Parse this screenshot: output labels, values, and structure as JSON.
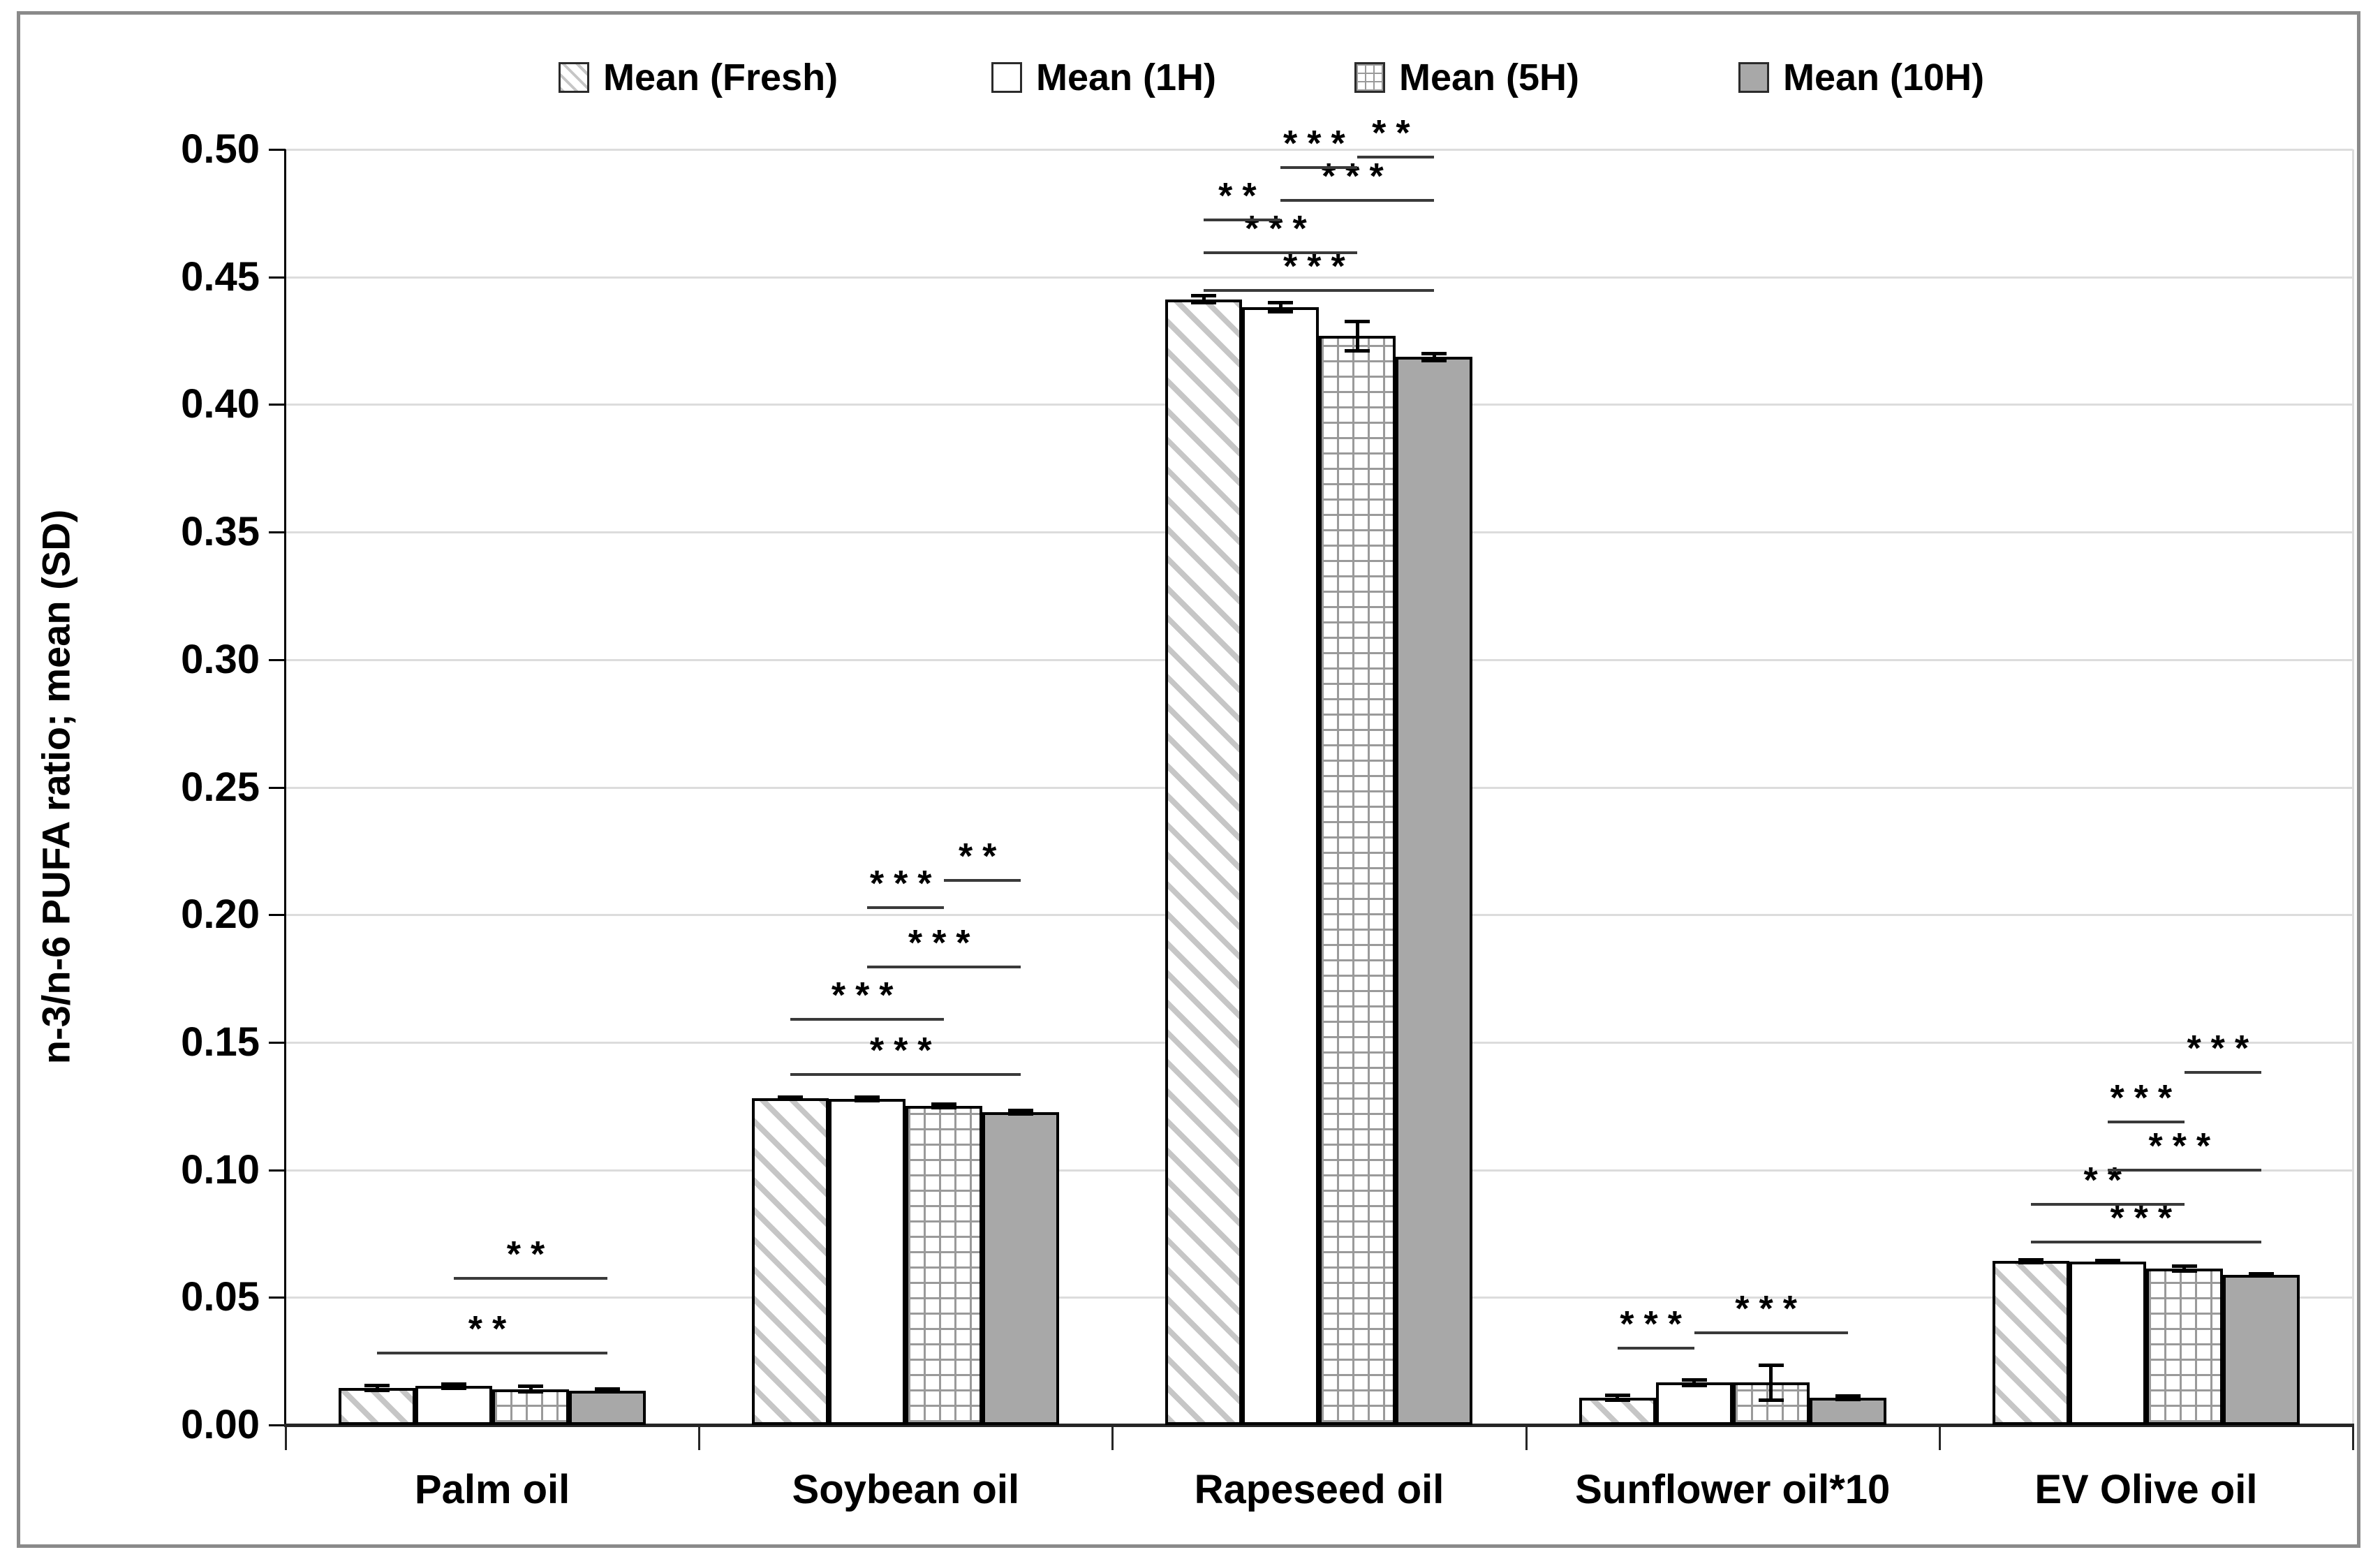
{
  "chart_data": {
    "type": "bar",
    "title": "",
    "xlabel": "",
    "ylabel": "n-3/n-6 PUFA ratio; mean (SD)",
    "ylim": [
      0,
      0.5
    ],
    "ytick_step": 0.05,
    "ytick_labels": [
      "0.00",
      "0.05",
      "0.10",
      "0.15",
      "0.20",
      "0.25",
      "0.30",
      "0.35",
      "0.40",
      "0.45",
      "0.50"
    ],
    "grid": true,
    "legend_position": "top-center",
    "categories": [
      "Palm oil",
      "Soybean oil",
      "Rapeseed oil",
      "Sunflower oil*10",
      "EV Olive oil"
    ],
    "series": [
      {
        "name": "Mean (Fresh)",
        "key": "fresh",
        "pattern": "diagonal-hatch",
        "values": [
          0.0145,
          0.128,
          0.4412,
          0.0107,
          0.0642
        ],
        "sd": [
          0.0012,
          0.0005,
          0.0015,
          0.001,
          0.0006
        ]
      },
      {
        "name": "Mean (1H)",
        "key": "h1",
        "pattern": "plain-white",
        "values": [
          0.0152,
          0.1278,
          0.4382,
          0.0166,
          0.064
        ],
        "sd": [
          0.001,
          0.0008,
          0.002,
          0.0012,
          0.0006
        ]
      },
      {
        "name": "Mean (5H)",
        "key": "h5",
        "pattern": "grid",
        "values": [
          0.014,
          0.125,
          0.4268,
          0.0166,
          0.0613
        ],
        "sd": [
          0.0012,
          0.0008,
          0.006,
          0.007,
          0.0012
        ]
      },
      {
        "name": "Mean (10H)",
        "key": "h10",
        "pattern": "solid-gray",
        "values": [
          0.0135,
          0.1226,
          0.4186,
          0.0107,
          0.0588
        ],
        "sd": [
          0.0006,
          0.0008,
          0.0015,
          0.0008,
          0.0005
        ]
      }
    ],
    "significance": [
      {
        "category": "Palm oil",
        "comparisons": [
          {
            "between": [
              0,
              3
            ],
            "label": "**",
            "level": 0.0283
          },
          {
            "between": [
              1,
              3
            ],
            "label": "**",
            "level": 0.0575
          }
        ]
      },
      {
        "category": "Soybean oil",
        "comparisons": [
          {
            "between": [
              0,
              3
            ],
            "label": "***",
            "level": 0.1374
          },
          {
            "between": [
              0,
              2
            ],
            "label": "***",
            "level": 0.159
          },
          {
            "between": [
              1,
              3
            ],
            "label": "***",
            "level": 0.1794
          },
          {
            "between": [
              1,
              2
            ],
            "label": "***",
            "level": 0.2027
          },
          {
            "between": [
              2,
              3
            ],
            "label": "**",
            "level": 0.2134
          }
        ]
      },
      {
        "category": "Rapeseed oil",
        "comparisons": [
          {
            "between": [
              0,
              3
            ],
            "label": "***",
            "level": 0.4447
          },
          {
            "between": [
              0,
              2
            ],
            "label": "***",
            "level": 0.4596
          },
          {
            "between": [
              0,
              1
            ],
            "label": "**",
            "level": 0.4724
          },
          {
            "between": [
              1,
              3
            ],
            "label": "***",
            "level": 0.48
          },
          {
            "between": [
              1,
              2
            ],
            "label": "***",
            "level": 0.4929
          },
          {
            "between": [
              2,
              3
            ],
            "label": "**",
            "level": 0.4971
          }
        ]
      },
      {
        "category": "Sunflower oil*10",
        "comparisons": [
          {
            "between": [
              0,
              1
            ],
            "label": "***",
            "level": 0.0302
          },
          {
            "between": [
              1,
              3
            ],
            "label": "***",
            "level": 0.0361
          }
        ]
      },
      {
        "category": "EV Olive oil",
        "comparisons": [
          {
            "between": [
              0,
              3
            ],
            "label": "***",
            "level": 0.0716
          },
          {
            "between": [
              0,
              2
            ],
            "label": "**",
            "level": 0.0864
          },
          {
            "between": [
              1,
              3
            ],
            "label": "***",
            "level": 0.1
          },
          {
            "between": [
              1,
              2
            ],
            "label": "***",
            "level": 0.1188
          },
          {
            "between": [
              2,
              3
            ],
            "label": "***",
            "level": 0.1383
          }
        ]
      }
    ]
  },
  "colors": {
    "background": "#ffffff",
    "hatch_stripe": "#c6c6c6",
    "grid_pattern_line": "#9a9a9a",
    "solid_gray_fill": "#a8a8a8",
    "bar_border": "#000000",
    "gridline": "#dcdcdc",
    "axis": "#262626",
    "sig_line": "#3a3a3a",
    "frame": "#8a8a8a",
    "text": "#000000"
  }
}
